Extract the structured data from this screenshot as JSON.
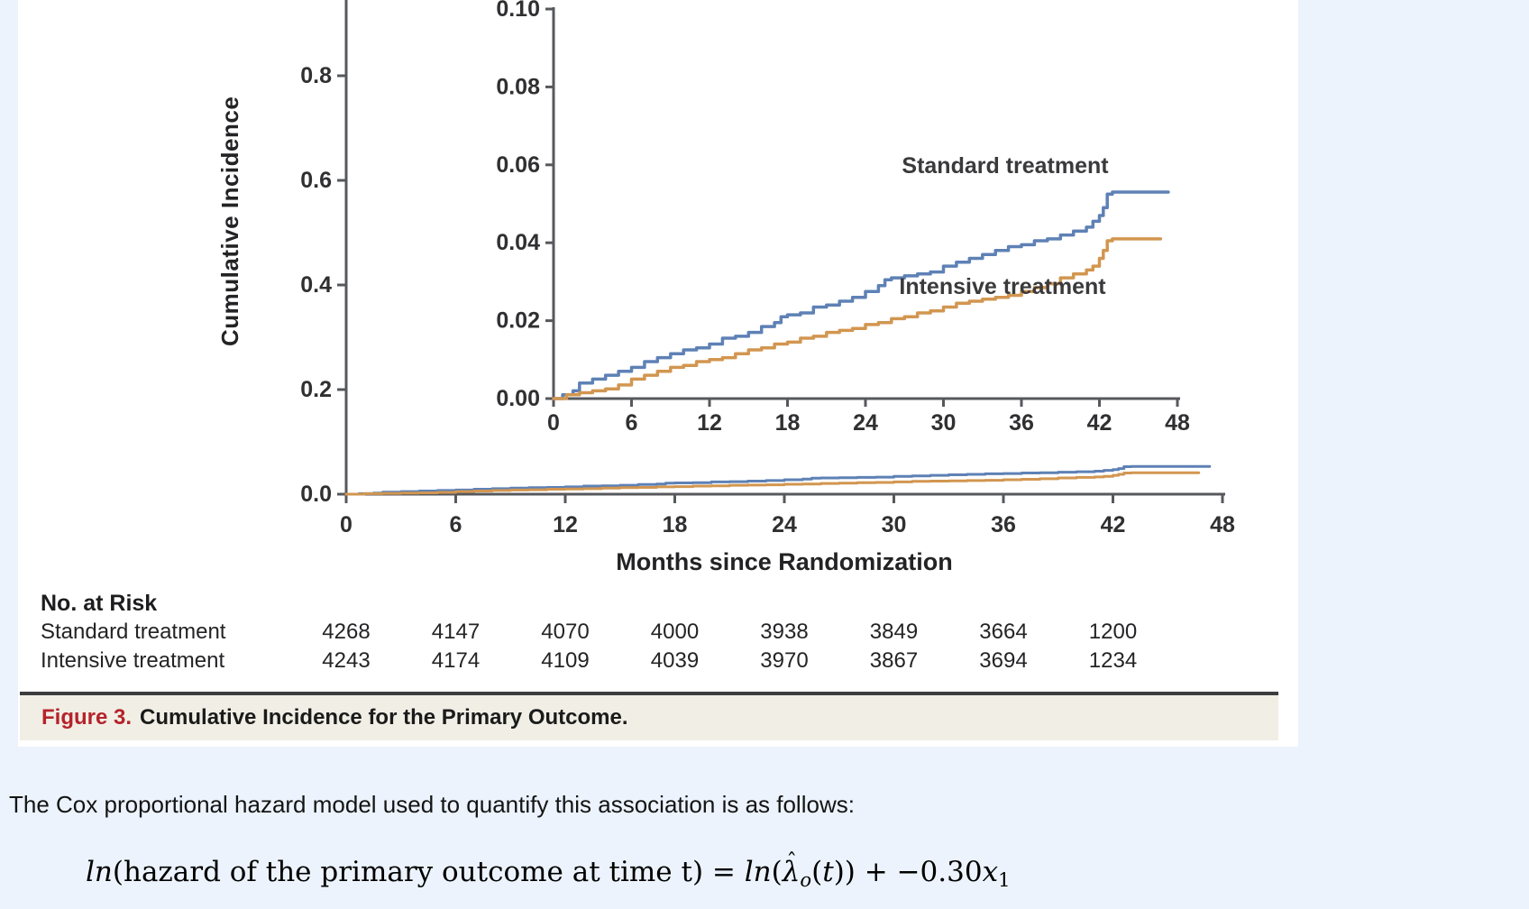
{
  "page": {
    "background": "#ecf3fc",
    "panel_background": "#ffffff"
  },
  "chart_data": {
    "type": "line",
    "xlabel": "Months since Randomization",
    "ylabel": "Cumulative Incidence",
    "series": [
      {
        "name": "Standard treatment",
        "color": "#5e81b5",
        "x": [
          0,
          0.7,
          1.5,
          2,
          3,
          4,
          5,
          6,
          7,
          8,
          9,
          10,
          11,
          12,
          13,
          14,
          15,
          16,
          17,
          17.5,
          18,
          19,
          20,
          21,
          22,
          23,
          24,
          25,
          25.5,
          26,
          27,
          28,
          29,
          30,
          31,
          32,
          33,
          34,
          35,
          36,
          37,
          38,
          39,
          40,
          41,
          41.5,
          42,
          42.3,
          42.6,
          43,
          47.3
        ],
        "y": [
          0,
          0.001,
          0.002,
          0.004,
          0.005,
          0.006,
          0.007,
          0.008,
          0.0095,
          0.0105,
          0.0115,
          0.0125,
          0.013,
          0.014,
          0.0155,
          0.016,
          0.017,
          0.0185,
          0.0195,
          0.021,
          0.0215,
          0.022,
          0.0235,
          0.024,
          0.025,
          0.026,
          0.0275,
          0.029,
          0.0305,
          0.031,
          0.0315,
          0.032,
          0.0325,
          0.034,
          0.035,
          0.036,
          0.037,
          0.038,
          0.039,
          0.0395,
          0.0405,
          0.041,
          0.042,
          0.043,
          0.044,
          0.0455,
          0.047,
          0.049,
          0.0525,
          0.053,
          0.053
        ]
      },
      {
        "name": "Intensive treatment",
        "color": "#d29650",
        "x": [
          0,
          1,
          2,
          3,
          4,
          5,
          6,
          7,
          8,
          9,
          10,
          11,
          12,
          13,
          14,
          15,
          16,
          17,
          18,
          19,
          20,
          21,
          22,
          23,
          24,
          25,
          26,
          27,
          28,
          29,
          30,
          31,
          32,
          33,
          34,
          35,
          36,
          37,
          38,
          39,
          40,
          41,
          41.5,
          42,
          42.3,
          42.6,
          43,
          46.7
        ],
        "y": [
          0,
          0.001,
          0.0015,
          0.002,
          0.0025,
          0.0035,
          0.005,
          0.006,
          0.007,
          0.008,
          0.0085,
          0.0095,
          0.01,
          0.0105,
          0.0115,
          0.0125,
          0.013,
          0.014,
          0.0145,
          0.0155,
          0.016,
          0.017,
          0.0175,
          0.018,
          0.019,
          0.0195,
          0.0205,
          0.021,
          0.022,
          0.0225,
          0.0235,
          0.0245,
          0.025,
          0.0255,
          0.026,
          0.0265,
          0.0275,
          0.0285,
          0.0295,
          0.031,
          0.032,
          0.033,
          0.034,
          0.036,
          0.038,
          0.0405,
          0.041,
          0.041
        ]
      }
    ],
    "main_axes": {
      "xlim": [
        0,
        48
      ],
      "ylim": [
        0,
        0.94
      ],
      "grid": false,
      "legend": "none",
      "xticks": [
        0,
        6,
        12,
        18,
        24,
        30,
        36,
        42,
        48
      ],
      "ytick_values": [
        0,
        0.2,
        0.4,
        0.6,
        0.8
      ],
      "ytick_labels": [
        "0.0",
        "0.2",
        "0.4",
        "0.6",
        "0.8"
      ]
    },
    "inset_axes": {
      "xlim": [
        0,
        48
      ],
      "ylim": [
        0,
        0.1
      ],
      "grid": false,
      "legend": "inline-labels",
      "xticks": [
        0,
        6,
        12,
        18,
        24,
        30,
        36,
        42,
        48
      ],
      "ytick_values": [
        0,
        0.02,
        0.04,
        0.06,
        0.08,
        0.1
      ],
      "ytick_labels": [
        "0.00",
        "0.02",
        "0.04",
        "0.06",
        "0.08",
        "0.10"
      ]
    }
  },
  "at_risk": {
    "header": "No. at Risk",
    "rows": [
      {
        "label": "Standard treatment",
        "values": [
          "4268",
          "4147",
          "4070",
          "4000",
          "3938",
          "3849",
          "3664",
          "1200"
        ]
      },
      {
        "label": "Intensive treatment",
        "values": [
          "4243",
          "4174",
          "4109",
          "4039",
          "3970",
          "3867",
          "3694",
          "1234"
        ]
      }
    ]
  },
  "caption": {
    "label": "Figure 3.",
    "title": "Cumulative Incidence for the Primary Outcome.",
    "label_color": "#b5232b",
    "strip_background": "#f1eee5"
  },
  "body_text": {
    "paragraph": "The Cox proportional hazard model used to quantify this association is as follows:"
  },
  "formula": {
    "lhs_func": "ln",
    "lhs_rest": "(hazard of the primary outcome at time t) ",
    "equals": "= ",
    "rhs_func": "ln",
    "open_paren": "(",
    "lambda": "λ",
    "hat": "ˆ",
    "lambda_sub": "o",
    "t_open": "(",
    "t_var": "t",
    "t_close": ")) ",
    "plus": "+ ",
    "coefficient": "−0.30",
    "variable": "x",
    "variable_sub": "1"
  }
}
